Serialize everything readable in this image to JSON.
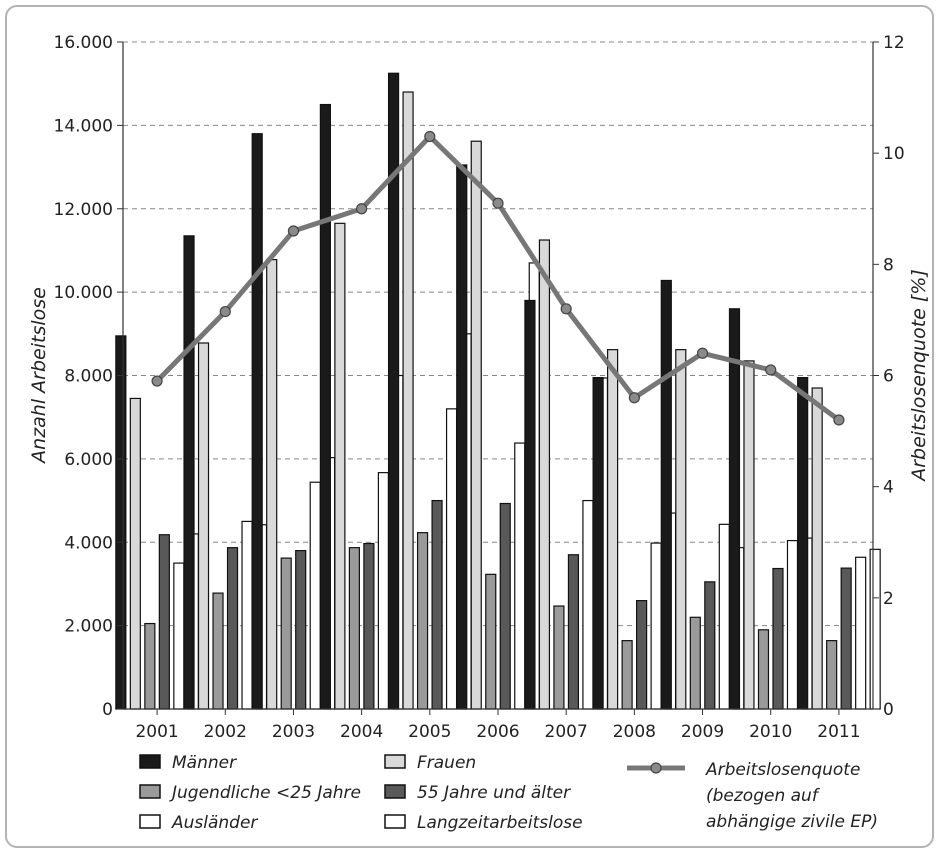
{
  "chart_data": {
    "type": "bar",
    "categories": [
      "2001",
      "2002",
      "2003",
      "2004",
      "2005",
      "2006",
      "2007",
      "2008",
      "2009",
      "2010",
      "2011"
    ],
    "series": [
      {
        "name": "Männer",
        "kind": "bar",
        "color": "#1a1a1a",
        "values": [
          8950,
          11350,
          13800,
          14500,
          15250,
          13050,
          9800,
          7950,
          10280,
          9600,
          7950
        ]
      },
      {
        "name": "Frauen",
        "kind": "bar",
        "color": "#d9d9d9",
        "values": [
          7450,
          8780,
          10780,
          11650,
          14800,
          13620,
          11250,
          8620,
          8620,
          8350,
          7700
        ]
      },
      {
        "name": "Jugendliche <25 Jahre",
        "kind": "bar",
        "color": "#9a9a9a",
        "values": [
          2050,
          2780,
          3620,
          3870,
          4230,
          3230,
          2470,
          1640,
          2200,
          1900,
          1640
        ]
      },
      {
        "name": "55 Jahre und älter",
        "kind": "bar",
        "color": "#595959",
        "values": [
          4180,
          3870,
          3800,
          3970,
          5000,
          4930,
          3700,
          2600,
          3050,
          3370,
          3380
        ]
      },
      {
        "name": "Ausländer",
        "kind": "bar",
        "color": "#ffffff",
        "values": [
          3500,
          4500,
          5440,
          5670,
          7200,
          6380,
          5000,
          3980,
          4430,
          4040,
          3640
        ]
      },
      {
        "name": "Langzeitarbeitslose",
        "kind": "bar",
        "color": "#ffffff",
        "values": [
          4200,
          4420,
          6030,
          8000,
          9000,
          10700,
          7940,
          4700,
          3870,
          4100,
          3830
        ]
      },
      {
        "name": "Arbeitslosenquote",
        "kind": "line",
        "axis": "right",
        "color": "#777777",
        "values": [
          5.9,
          7.15,
          8.6,
          9.0,
          10.3,
          9.1,
          7.2,
          5.6,
          6.4,
          6.1,
          5.2
        ]
      }
    ],
    "yticks": [
      "0",
      "2.000",
      "4.000",
      "6.000",
      "8.000",
      "10.000",
      "12.000",
      "14.000",
      "16.000"
    ],
    "y2ticks": [
      "0",
      "2",
      "4",
      "6",
      "8",
      "10",
      "12"
    ],
    "ylim": [
      0,
      16000
    ],
    "y2lim": [
      0,
      12
    ],
    "ylabel": "Anzahl Arbeitslose",
    "y2label": "Arbeitslosenquote [%]",
    "grid": true,
    "legend": {
      "placement": "bottom",
      "items": [
        {
          "label": "Männer",
          "style": "bar",
          "color": "#1a1a1a"
        },
        {
          "label": "Frauen",
          "style": "bar",
          "color": "#d9d9d9"
        },
        {
          "label": "Jugendliche <25 Jahre",
          "style": "bar",
          "color": "#9a9a9a"
        },
        {
          "label": "55 Jahre und älter",
          "style": "bar",
          "color": "#595959"
        },
        {
          "label": "Ausländer",
          "style": "bar",
          "color": "#ffffff"
        },
        {
          "label": "Langzeitarbeitslose",
          "style": "bar",
          "color": "#ffffff"
        },
        {
          "label": "Arbeitslosenquote",
          "style": "line",
          "color": "#777777",
          "sub1": "(bezogen auf",
          "sub2": "abhängige zivile EP)"
        }
      ]
    }
  }
}
